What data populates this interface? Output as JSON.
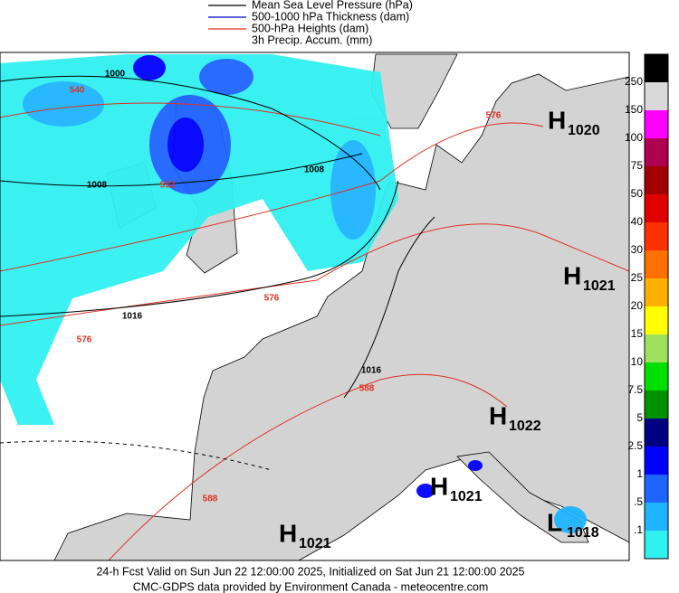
{
  "legend": [
    {
      "label": "Mean Sea Level Pressure (hPa)",
      "color": "#000000"
    },
    {
      "label": "500-1000 hPa Thickness (dam)",
      "color": "#0000cc"
    },
    {
      "label": "500-hPa Heights (dam)",
      "color": "#e0301e"
    },
    {
      "label": "3h Precip. Accum. (mm)"
    }
  ],
  "colorbar": [
    {
      "label": "250",
      "color": "#d9d9d9"
    },
    {
      "label": "150",
      "color": "#ff00ff"
    },
    {
      "label": "100",
      "color": "#b00050"
    },
    {
      "label": "75",
      "color": "#a00000"
    },
    {
      "label": "50",
      "color": "#e00000"
    },
    {
      "label": "40",
      "color": "#ff3000"
    },
    {
      "label": "30",
      "color": "#ff7000"
    },
    {
      "label": "25",
      "color": "#ffb000"
    },
    {
      "label": "20",
      "color": "#ffff00"
    },
    {
      "label": "15",
      "color": "#a0e060"
    },
    {
      "label": "10",
      "color": "#00e000"
    },
    {
      "label": "7.5",
      "color": "#009000"
    },
    {
      "label": "5",
      "color": "#000080"
    },
    {
      "label": "2.5",
      "color": "#0000ff"
    },
    {
      "label": "1",
      "color": "#1e64ff"
    },
    {
      "label": ".5",
      "color": "#1eb4ff"
    },
    {
      "label": ".1",
      "color": "#30f0f0"
    }
  ],
  "centers": [
    {
      "letter": "H",
      "value": "1020"
    },
    {
      "letter": "H",
      "value": "1021"
    },
    {
      "letter": "H",
      "value": "1022"
    },
    {
      "letter": "H",
      "value": "1021"
    },
    {
      "letter": "H",
      "value": "1021"
    },
    {
      "letter": "L",
      "value": "1018"
    }
  ],
  "contour_labels": [
    {
      "text": "1000",
      "color": "#000000"
    },
    {
      "text": "540",
      "color": "#e0301e"
    },
    {
      "text": "1008",
      "color": "#000000"
    },
    {
      "text": "552",
      "color": "#e0301e"
    },
    {
      "text": "1008",
      "color": "#000000"
    },
    {
      "text": "576",
      "color": "#e0301e"
    },
    {
      "text": "576",
      "color": "#e0301e"
    },
    {
      "text": "1016",
      "color": "#000000"
    },
    {
      "text": "576",
      "color": "#e0301e"
    },
    {
      "text": "1016",
      "color": "#000000"
    },
    {
      "text": "588",
      "color": "#e0301e"
    },
    {
      "text": "588",
      "color": "#e0301e"
    }
  ],
  "footer": {
    "line1": "24-h Fcst Valid on Sun Jun 22 12:00:00 2025, Initialized on Sat Jun 21 12:00:00 2025",
    "line2": "CMC-GDPS data provided by Environment Canada - meteocentre.com"
  }
}
